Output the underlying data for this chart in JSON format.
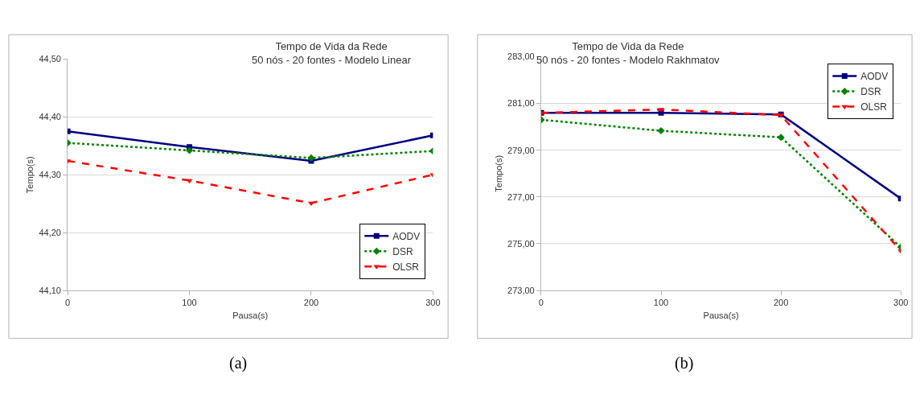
{
  "chart_data": [
    {
      "type": "line",
      "title": "Tempo de Vida da Rede",
      "subtitle": "50 nós - 20 fontes - Modelo Linear",
      "xlabel": "Pausa(s)",
      "ylabel": "Tempo(s)",
      "x": [
        0,
        100,
        200,
        300
      ],
      "xlim": [
        0,
        300
      ],
      "xticks": [
        0,
        100,
        200,
        300
      ],
      "ylim": [
        44.1,
        44.5
      ],
      "yticks": [
        {
          "value": 44.1,
          "label": "44,10"
        },
        {
          "value": 44.2,
          "label": "44,20"
        },
        {
          "value": 44.3,
          "label": "44,30"
        },
        {
          "value": 44.4,
          "label": "44,40"
        },
        {
          "value": 44.5,
          "label": "44,50"
        }
      ],
      "grid": "y",
      "legend": "bottom right",
      "annotations": [
        "(a)"
      ],
      "series": [
        {
          "name": "AODV",
          "color": "#000080",
          "marker": "square",
          "line_style": "solid",
          "values": [
            44.375,
            44.348,
            44.324,
            44.368
          ]
        },
        {
          "name": "DSR",
          "color": "#008000",
          "marker": "diamond",
          "line_style": "dotted",
          "values": [
            44.355,
            44.342,
            44.329,
            44.341
          ]
        },
        {
          "name": "OLSR",
          "color": "#ff0000",
          "marker": "triangle",
          "line_style": "dashed",
          "values": [
            44.324,
            44.29,
            44.251,
            44.3
          ]
        }
      ]
    },
    {
      "type": "line",
      "title": "Tempo de Vida da Rede",
      "subtitle": "50 nós - 20 fontes - Modelo Rakhmatov",
      "xlabel": "Pausa(s)",
      "ylabel": "Tempo(s)",
      "x": [
        0,
        100,
        200,
        300
      ],
      "xlim": [
        0,
        300
      ],
      "xticks": [
        0,
        100,
        200,
        300
      ],
      "ylim": [
        273,
        283
      ],
      "yticks": [
        {
          "value": 273,
          "label": "273,00"
        },
        {
          "value": 275,
          "label": "275,00"
        },
        {
          "value": 277,
          "label": "277,00"
        },
        {
          "value": 279,
          "label": "279,00"
        },
        {
          "value": 281,
          "label": "281,00"
        },
        {
          "value": 283,
          "label": "283,00"
        }
      ],
      "grid": "y",
      "legend": "top right",
      "annotations": [
        "(b)"
      ],
      "series": [
        {
          "name": "AODV",
          "color": "#000080",
          "marker": "square",
          "line_style": "solid",
          "values": [
            280.6,
            280.6,
            280.53,
            276.93
          ]
        },
        {
          "name": "DSR",
          "color": "#008000",
          "marker": "diamond",
          "line_style": "dotted",
          "values": [
            280.3,
            279.83,
            279.55,
            274.85
          ]
        },
        {
          "name": "OLSR",
          "color": "#ff0000",
          "marker": "triangle",
          "line_style": "dashed",
          "values": [
            280.6,
            280.74,
            280.5,
            274.69
          ]
        }
      ]
    }
  ]
}
